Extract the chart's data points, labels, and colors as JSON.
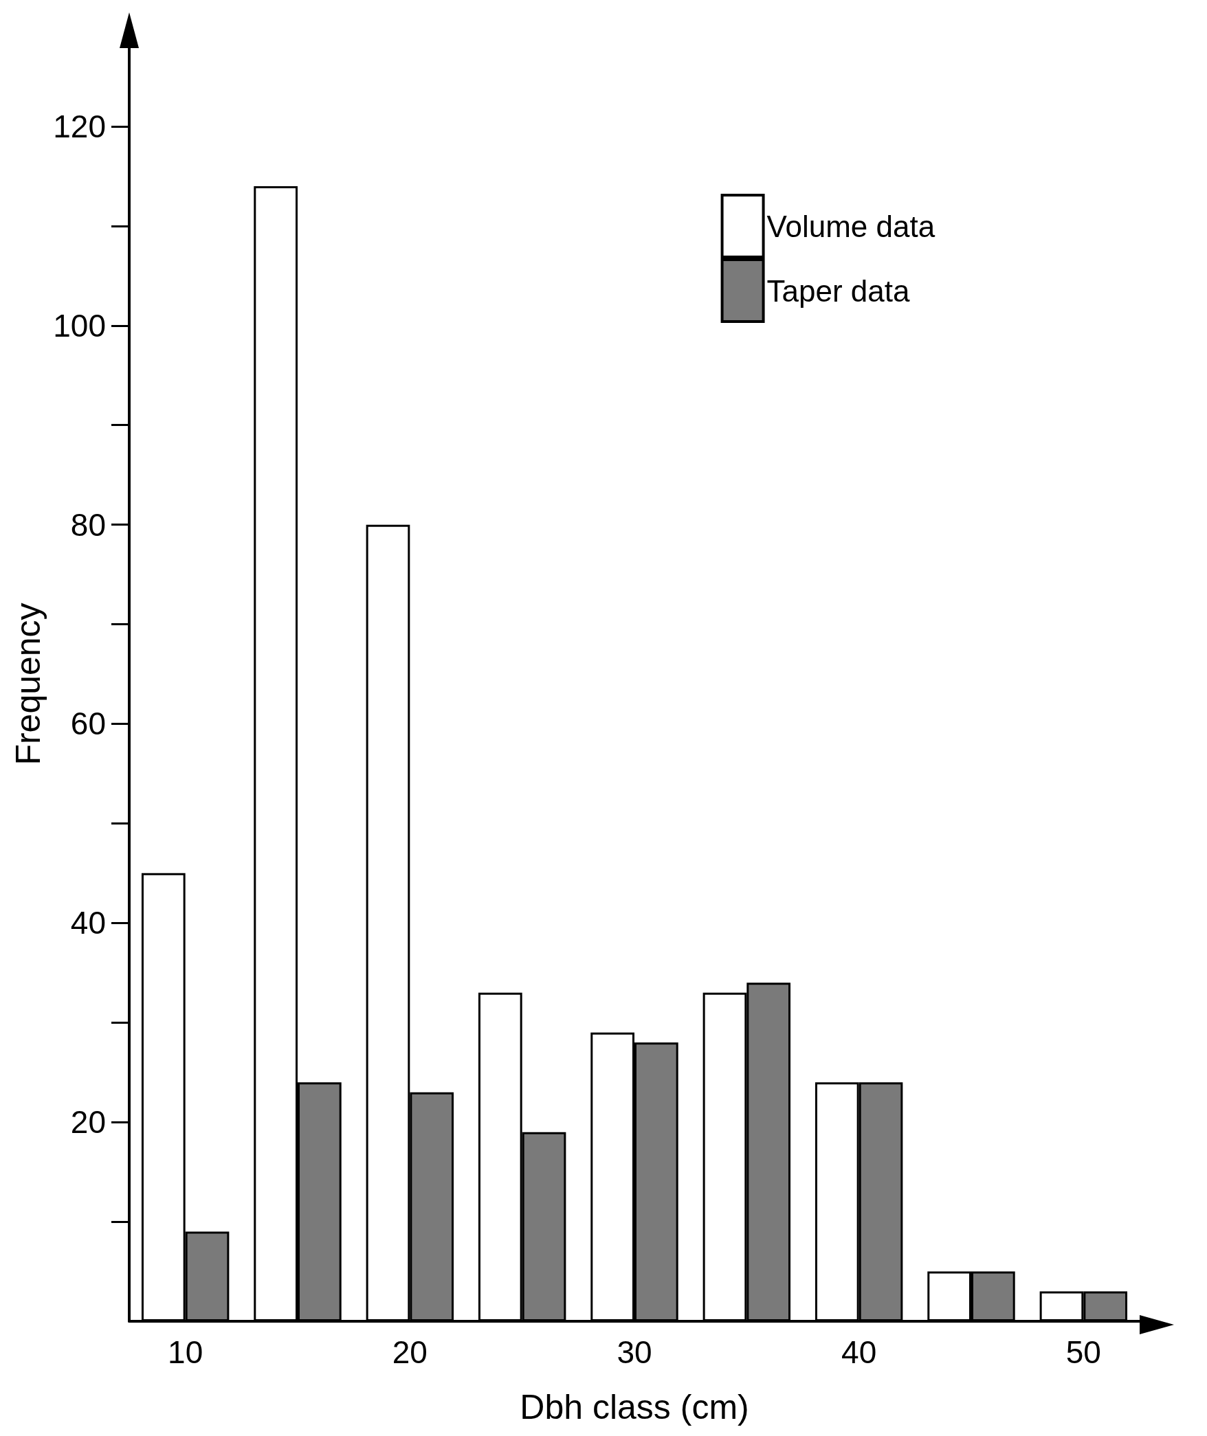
{
  "chart_data": {
    "type": "bar",
    "xlabel": "Dbh class (cm)",
    "ylabel": "Frequency",
    "categories": [
      "10",
      null,
      "20",
      null,
      "30",
      null,
      "40",
      null,
      "50"
    ],
    "series": [
      {
        "name": "Volume data",
        "color": "#ffffff",
        "values": [
          45,
          114,
          80,
          33,
          29,
          33,
          24,
          5,
          3
        ]
      },
      {
        "name": "Taper data",
        "color": "#7a7a7a",
        "values": [
          9,
          24,
          23,
          19,
          28,
          34,
          24,
          5,
          3
        ]
      }
    ],
    "ylim": [
      0,
      128
    ],
    "yticks": [
      20,
      40,
      60,
      80,
      100,
      120
    ],
    "grid": false,
    "legend": "top right"
  }
}
